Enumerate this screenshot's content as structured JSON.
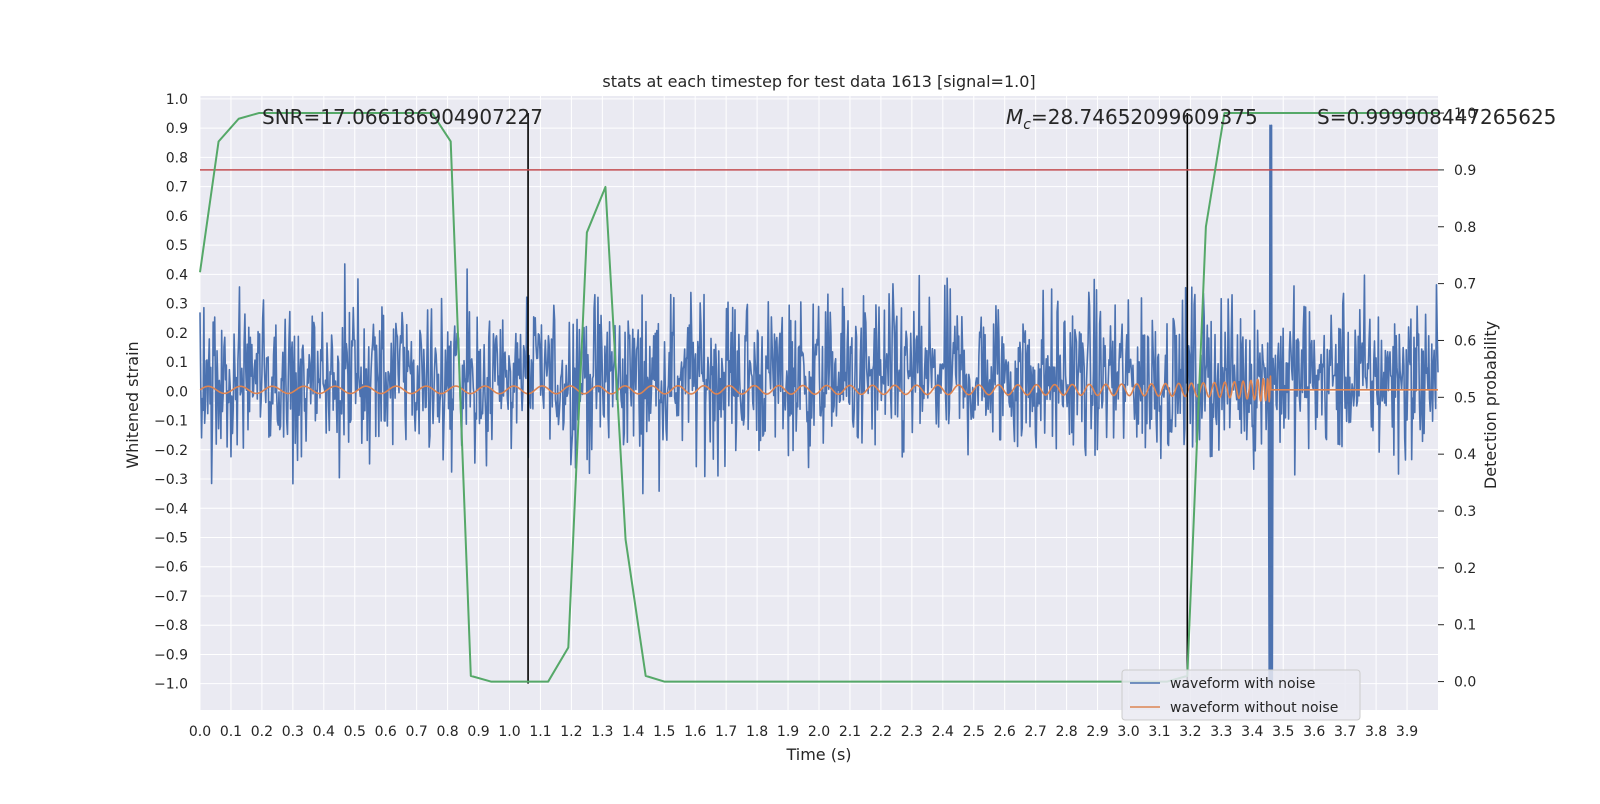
{
  "chart_data": {
    "type": "line",
    "title": "stats at each timestep for test data 1613 [signal=1.0]",
    "xlabel": "Time (s)",
    "ylabel": "Whitened strain",
    "ylabel_right": "Detection probability",
    "xlim": [
      0.0,
      4.0
    ],
    "ylim": [
      -1.09,
      1.01
    ],
    "ylim_right": [
      -0.05,
      1.03
    ],
    "x_ticks": [
      0.0,
      0.1,
      0.2,
      0.3,
      0.4,
      0.5,
      0.6,
      0.7,
      0.8,
      0.9,
      1.0,
      1.1,
      1.2,
      1.3,
      1.4,
      1.5,
      1.6,
      1.7,
      1.8,
      1.9,
      2.0,
      2.1,
      2.2,
      2.3,
      2.4,
      2.5,
      2.6,
      2.7,
      2.8,
      2.9,
      3.0,
      3.1,
      3.2,
      3.3,
      3.4,
      3.5,
      3.6,
      3.7,
      3.8,
      3.9
    ],
    "x_tick_labels": [
      "0.0",
      "0.1",
      "0.2",
      "0.3",
      "0.4",
      "0.5",
      "0.6",
      "0.7",
      "0.8",
      "0.9",
      "1.0",
      "1.1",
      "1.2",
      "1.3",
      "1.4",
      "1.5",
      "1.6",
      "1.7",
      "1.8",
      "1.9",
      "2.0",
      "2.1",
      "2.2",
      "2.3",
      "2.4",
      "2.5",
      "2.6",
      "2.7",
      "2.8",
      "2.9",
      "3.0",
      "3.1",
      "3.2",
      "3.3",
      "3.4",
      "3.5",
      "3.6",
      "3.7",
      "3.8",
      "3.9"
    ],
    "y_ticks": [
      1.0,
      0.9,
      0.8,
      0.7,
      0.6,
      0.5,
      0.4,
      0.3,
      0.2,
      0.1,
      0.0,
      -0.1,
      -0.2,
      -0.3,
      -0.4,
      -0.5,
      -0.6,
      -0.7,
      -0.8,
      -0.9,
      -1.0
    ],
    "y_tick_labels": [
      "1.0",
      "0.9",
      "0.8",
      "0.7",
      "0.6",
      "0.5",
      "0.4",
      "0.3",
      "0.2",
      "0.1",
      "0.0",
      "−0.1",
      "−0.2",
      "−0.3",
      "−0.4",
      "−0.5",
      "−0.6",
      "−0.7",
      "−0.8",
      "−0.9",
      "−1.0"
    ],
    "y_ticks_right": [
      1.0,
      0.9,
      0.8,
      0.7,
      0.6,
      0.5,
      0.4,
      0.3,
      0.2,
      0.1,
      0.0
    ],
    "y_tick_labels_right": [
      "1.0",
      "0.9",
      "0.8",
      "0.7",
      "0.6",
      "0.5",
      "0.4",
      "0.3",
      "0.2",
      "0.1",
      "0.0"
    ],
    "annotations": {
      "snr": "SNR=17.066186904907227",
      "mc_symbol": "M",
      "mc_sub": "c",
      "mc_value": "=28.74652099609375",
      "s": "S=0.999908447265625"
    },
    "vlines_x": [
      1.06,
      3.19
    ],
    "threshold_right": 0.9,
    "hlines_left": [
      0.15,
      -0.04
    ],
    "series": [
      {
        "name": "waveform with noise",
        "color": "#4c72b0",
        "kind": "noise",
        "sample_count": 1600,
        "typical_amplitude": 0.25,
        "peak_near_merger": [
          0.91,
          -1.0
        ],
        "merger_time": 3.46
      },
      {
        "name": "waveform without noise",
        "color": "#dd8452",
        "kind": "chirp",
        "start_time": 0.0,
        "merger_time": 3.46,
        "initial_amplitude": 0.012,
        "peak_amplitude": 0.64,
        "min_amplitude": -0.66
      },
      {
        "name": "",
        "color": "#55a868",
        "kind": "probability",
        "x": [
          0.0,
          0.06,
          0.125,
          0.19,
          0.25,
          0.31,
          0.375,
          0.44,
          0.5,
          0.56,
          0.625,
          0.69,
          0.75,
          0.81,
          0.875,
          0.94,
          1.0,
          1.06,
          1.125,
          1.19,
          1.25,
          1.31,
          1.375,
          1.44,
          1.5,
          1.56,
          1.625,
          1.69,
          1.75,
          1.81,
          1.875,
          1.94,
          2.0,
          2.06,
          2.125,
          2.19,
          2.25,
          2.31,
          2.375,
          2.44,
          2.5,
          2.56,
          2.625,
          2.69,
          2.75,
          2.81,
          2.875,
          2.94,
          3.0,
          3.06,
          3.125,
          3.19,
          3.25,
          3.31,
          3.375,
          3.44,
          3.5,
          3.56,
          3.625,
          3.69,
          3.75,
          3.81,
          3.875,
          3.94,
          4.0
        ],
        "y": [
          0.72,
          0.95,
          0.99,
          1.0,
          1.0,
          1.0,
          1.0,
          1.0,
          1.0,
          1.0,
          1.0,
          1.0,
          1.0,
          0.95,
          0.01,
          0.0,
          0.0,
          0.0,
          0.0,
          0.06,
          0.79,
          0.87,
          0.25,
          0.01,
          0.0,
          0.0,
          0.0,
          0.0,
          0.0,
          0.0,
          0.0,
          0.0,
          0.0,
          0.0,
          0.0,
          0.0,
          0.0,
          0.0,
          0.0,
          0.0,
          0.0,
          0.0,
          0.0,
          0.0,
          0.0,
          0.0,
          0.0,
          0.0,
          0.0,
          0.0,
          0.0,
          0.01,
          0.8,
          1.0,
          1.0,
          1.0,
          1.0,
          1.0,
          1.0,
          1.0,
          1.0,
          1.0,
          1.0,
          1.0,
          1.0
        ]
      }
    ],
    "threshold_color": "#c44e52",
    "vline_color": "#000000",
    "background": "#eaeaf2",
    "grid": true,
    "legend_position": "lower right",
    "legend": [
      {
        "label": "waveform with noise",
        "color": "#4c72b0"
      },
      {
        "label": "waveform without noise",
        "color": "#dd8452"
      }
    ]
  }
}
